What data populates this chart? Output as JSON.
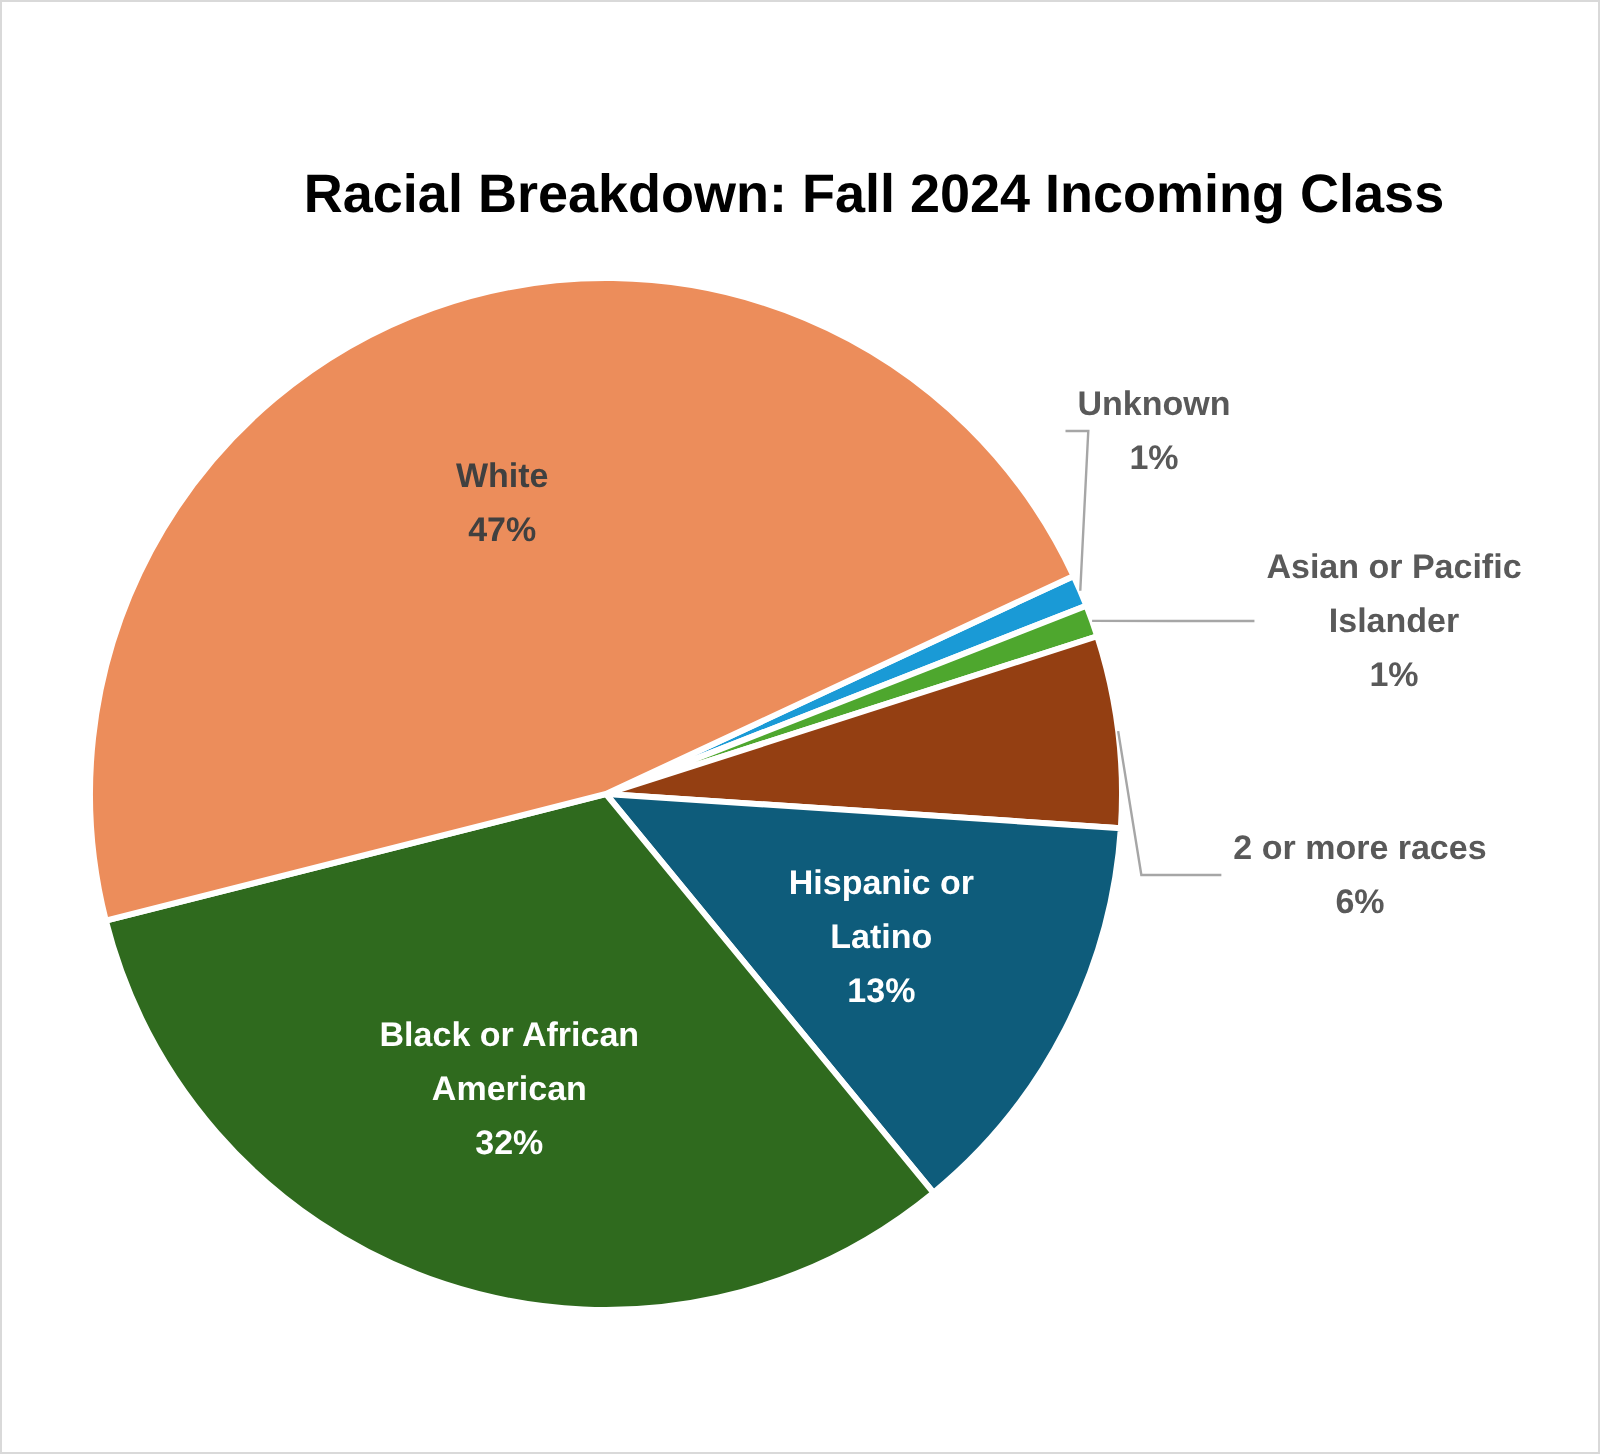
{
  "chart_data": {
    "type": "pie",
    "title": "Racial Breakdown: Fall 2024 Incoming Class",
    "categories": [
      "Unknown",
      "Asian or Pacific Islander",
      "2 or more races",
      "Hispanic or Latino",
      "Black or African American",
      "White"
    ],
    "values": [
      1,
      1,
      6,
      13,
      32,
      47
    ],
    "colors": [
      "#1a9ad6",
      "#4ea72e",
      "#943f12",
      "#0e5c7b",
      "#2f6a1e",
      "#ec8d5b"
    ],
    "value_labels": [
      "1%",
      "1%",
      "6%",
      "13%",
      "32%",
      "47%"
    ]
  }
}
